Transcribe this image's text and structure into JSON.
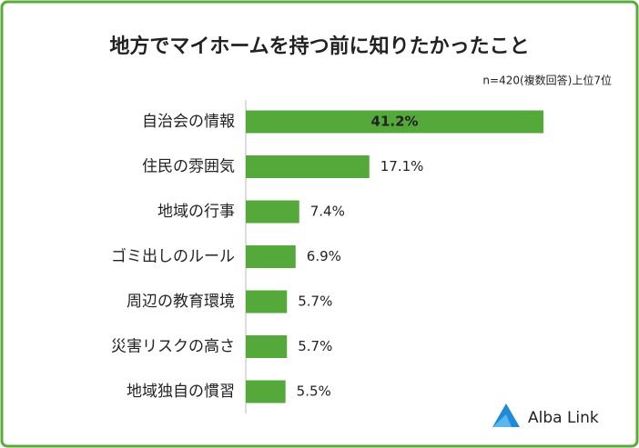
{
  "chart_data": {
    "type": "bar",
    "orientation": "horizontal",
    "title": "地方でマイホームを持つ前に知りたかったこと",
    "subtitle": "n=420(複数回答)上位7位",
    "categories": [
      "自治会の情報",
      "住民の雰囲気",
      "地域の行事",
      "ゴミ出しのルール",
      "周辺の教育環境",
      "災害リスクの高さ",
      "地域独自の慣習"
    ],
    "values": [
      41.2,
      17.1,
      7.4,
      6.9,
      5.7,
      5.7,
      5.5
    ],
    "value_labels": [
      "41.2%",
      "17.1%",
      "7.4%",
      "6.9%",
      "5.7%",
      "5.7%",
      "5.5%"
    ],
    "color": "#55a93b"
  },
  "logo": "Alba Link"
}
